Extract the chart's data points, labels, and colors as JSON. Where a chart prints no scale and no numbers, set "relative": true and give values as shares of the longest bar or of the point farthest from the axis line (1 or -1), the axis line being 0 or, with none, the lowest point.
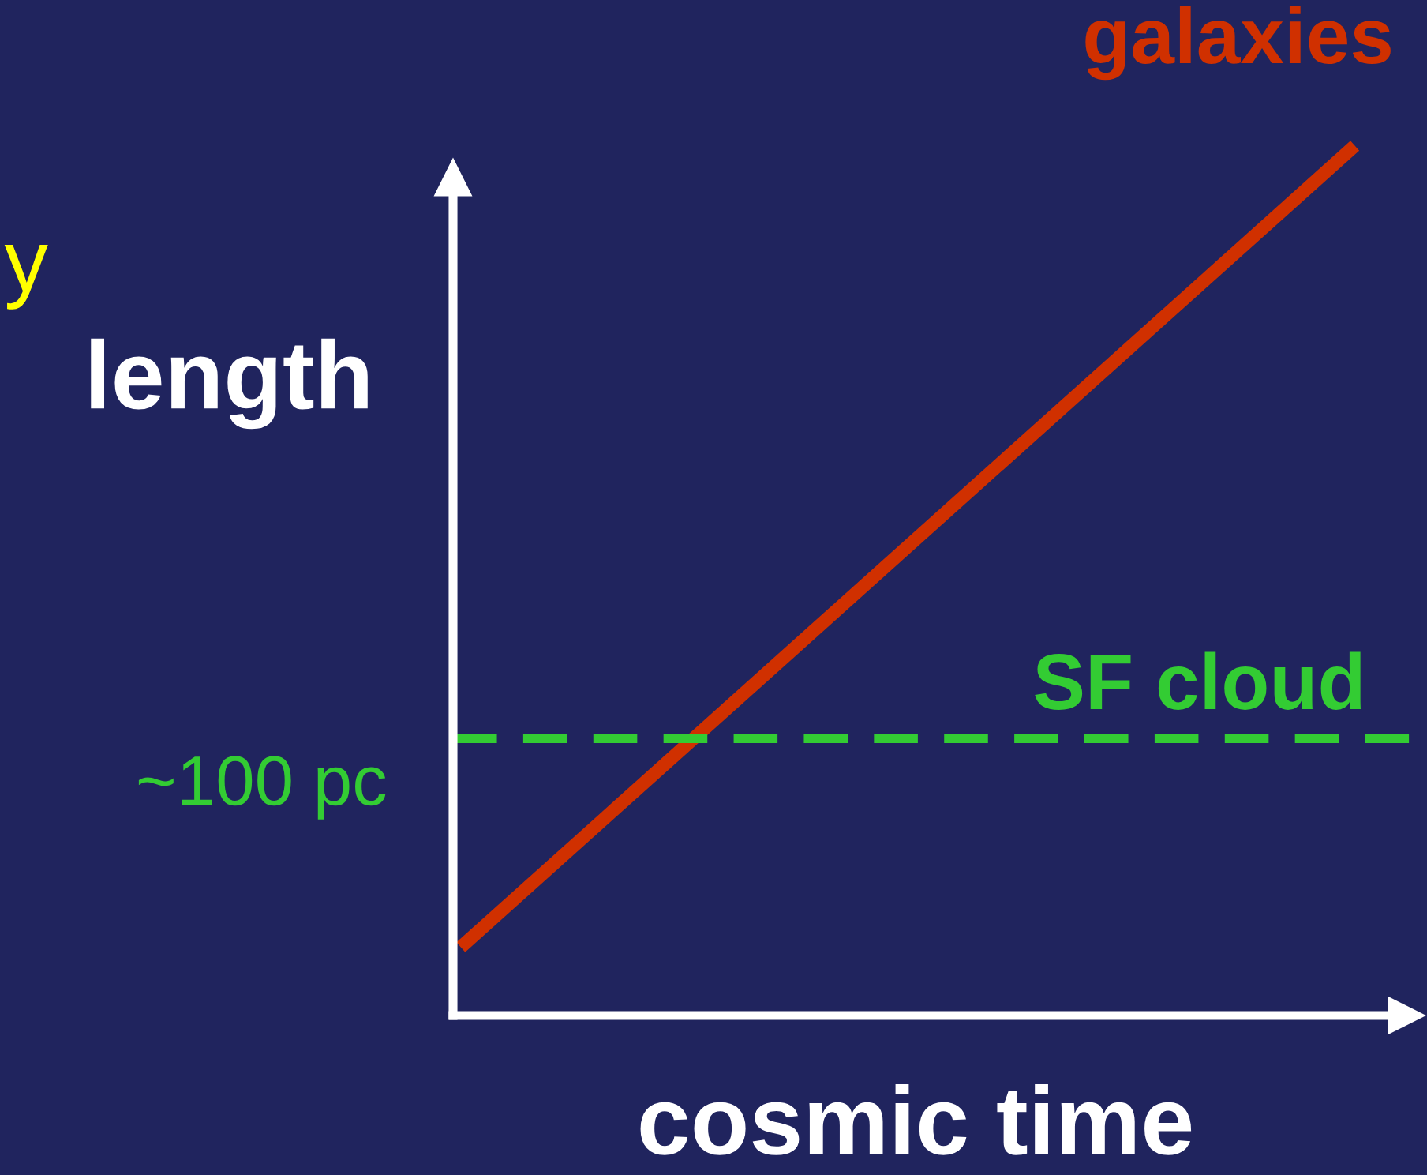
{
  "chart_data": {
    "type": "line",
    "relative": true,
    "categories": [
      null,
      null
    ],
    "series": [
      {
        "name": "galaxies",
        "color": "#d03000",
        "values": [
          0.084,
          1
        ]
      }
    ],
    "xlabel": "cosmic time",
    "ylabel": "length",
    "ref_lines": [
      {
        "axis": "y",
        "value": 0.32,
        "label": "~100 pc",
        "color": "#33cc33",
        "line_style": "dashed"
      }
    ],
    "annotations": [
      {
        "text": "SF cloud",
        "y": 0.32
      },
      "y"
    ],
    "legend": false,
    "line_style": "solid",
    "marker": "none"
  }
}
